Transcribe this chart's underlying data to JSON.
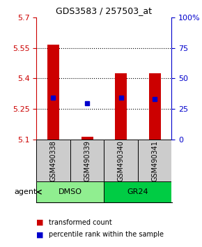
{
  "title": "GDS3583 / 257503_at",
  "samples": [
    "GSM490338",
    "GSM490339",
    "GSM490340",
    "GSM490341"
  ],
  "groups": [
    {
      "label": "DMSO",
      "color": "#90EE90",
      "samples": [
        0,
        1
      ]
    },
    {
      "label": "GR24",
      "color": "#00CC44",
      "samples": [
        2,
        3
      ]
    }
  ],
  "bar_bottoms": [
    5.1,
    5.1,
    5.1,
    5.1
  ],
  "bar_tops": [
    5.565,
    5.113,
    5.425,
    5.425
  ],
  "blue_y": [
    5.305,
    5.278,
    5.305,
    5.298
  ],
  "ylim": [
    5.1,
    5.7
  ],
  "left_yticks": [
    5.1,
    5.25,
    5.4,
    5.55,
    5.7
  ],
  "right_yticks": [
    0,
    25,
    50,
    75,
    100
  ],
  "right_ylabels": [
    "0",
    "25",
    "50",
    "75",
    "100%"
  ],
  "left_tick_color": "#CC0000",
  "right_tick_color": "#0000CC",
  "bar_color": "#CC0000",
  "blue_color": "#0000CC",
  "bar_width": 0.35,
  "agent_label": "agent",
  "legend_items": [
    {
      "color": "#CC0000",
      "label": "transformed count"
    },
    {
      "color": "#0000CC",
      "label": "percentile rank within the sample"
    }
  ]
}
